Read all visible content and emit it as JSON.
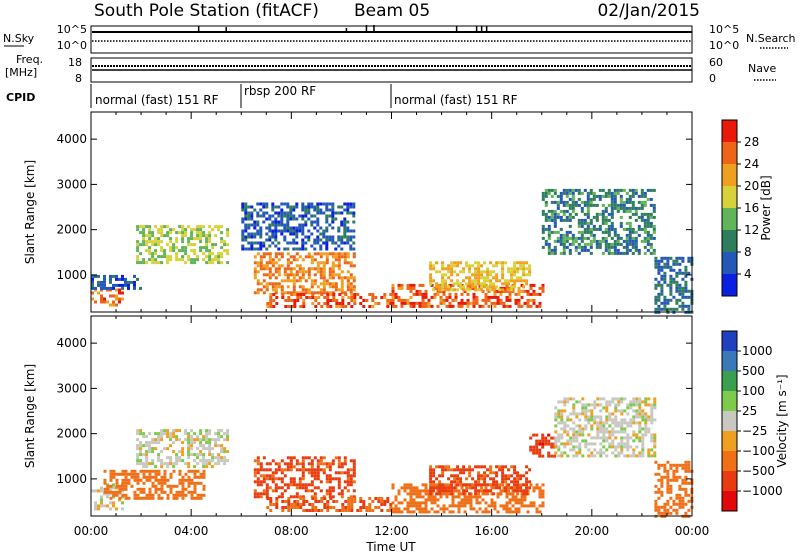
{
  "header": {
    "station": "South Pole Station (fitACF)",
    "beam": "Beam 05",
    "date": "02/Jan/2015"
  },
  "noise_panel": {
    "left_label": "N.Sky",
    "left_ticks": [
      "10^5",
      "10^0"
    ],
    "right_ticks": [
      "10^5",
      "10^0"
    ],
    "right_label": "N.Search"
  },
  "freq_panel": {
    "left_label_1": "Freq.",
    "left_label_2": "[MHz]",
    "left_ticks": [
      "18",
      "8"
    ],
    "right_ticks": [
      "60",
      "0"
    ],
    "right_label": "Nave"
  },
  "cpid": {
    "label": "CPID",
    "segments": [
      {
        "label": "normal (fast) 151 RF",
        "start_hour": 0,
        "end_hour": 6
      },
      {
        "label": "rbsp 200 RF",
        "start_hour": 6,
        "end_hour": 12
      },
      {
        "label": "normal (fast) 151 RF",
        "start_hour": 12,
        "end_hour": 24
      }
    ]
  },
  "x_axis": {
    "label": "Time UT",
    "ticks": [
      "00:00",
      "04:00",
      "08:00",
      "12:00",
      "16:00",
      "20:00",
      "00:00"
    ]
  },
  "power_colorbar": {
    "label": "Power [dB]",
    "ticks": [
      "4",
      "8",
      "12",
      "16",
      "20",
      "24",
      "28"
    ],
    "colors": [
      "#0a1fe0",
      "#2357b8",
      "#2e7d5c",
      "#62b45a",
      "#d8d23a",
      "#f0a020",
      "#ee6518",
      "#ea1a0a"
    ]
  },
  "velocity_colorbar": {
    "label": "Velocity [m s⁻¹]",
    "ticks": [
      "1000",
      "500",
      "100",
      "25",
      "−25",
      "−100",
      "−500",
      "−1000"
    ],
    "colors": [
      "#2040c0",
      "#3a78b8",
      "#3aa050",
      "#7ccb4a",
      "#c8c8c0",
      "#f0a020",
      "#f07018",
      "#e83c10",
      "#e00808"
    ]
  },
  "chart_data": [
    {
      "type": "heatmap",
      "title": "Power",
      "xlabel": "Time UT",
      "ylabel": "Slant Range [km]",
      "xlim": [
        0,
        24
      ],
      "ylim": [
        180,
        4600
      ],
      "yticks": [
        1000,
        2000,
        3000,
        4000
      ],
      "colorbar": "Power [dB]",
      "regions": [
        {
          "t0": 0.0,
          "t1": 1.2,
          "r0": 350,
          "r1": 700,
          "value": 26
        },
        {
          "t0": 0.0,
          "t1": 2.0,
          "r0": 700,
          "r1": 1000,
          "value": 6
        },
        {
          "t0": 1.8,
          "t1": 5.5,
          "r0": 1300,
          "r1": 2100,
          "value": 16
        },
        {
          "t0": 6.5,
          "t1": 10.5,
          "r0": 600,
          "r1": 1500,
          "value": 24
        },
        {
          "t0": 6.0,
          "t1": 10.5,
          "r0": 1600,
          "r1": 2600,
          "value": 6
        },
        {
          "t0": 7.0,
          "t1": 12.0,
          "r0": 300,
          "r1": 600,
          "value": 27
        },
        {
          "t0": 12.0,
          "t1": 18.0,
          "r0": 300,
          "r1": 800,
          "value": 27
        },
        {
          "t0": 13.5,
          "t1": 17.5,
          "r0": 700,
          "r1": 1300,
          "value": 20
        },
        {
          "t0": 18.0,
          "t1": 22.5,
          "r0": 1500,
          "r1": 2900,
          "value": 10
        },
        {
          "t0": 22.5,
          "t1": 24.0,
          "r0": 200,
          "r1": 1400,
          "value": 8
        }
      ]
    },
    {
      "type": "heatmap",
      "title": "Velocity",
      "xlabel": "Time UT",
      "ylabel": "Slant Range [km]",
      "xlim": [
        0,
        24
      ],
      "ylim": [
        180,
        4600
      ],
      "yticks": [
        1000,
        2000,
        3000,
        4000
      ],
      "colorbar": "Velocity [m s⁻¹]",
      "regions": [
        {
          "t0": 0.0,
          "t1": 1.2,
          "r0": 350,
          "r1": 900,
          "value": 0
        },
        {
          "t0": 1.8,
          "t1": 5.5,
          "r0": 1300,
          "r1": 2100,
          "value": 0
        },
        {
          "t0": 0.5,
          "t1": 4.5,
          "r0": 600,
          "r1": 1200,
          "value": -200
        },
        {
          "t0": 6.5,
          "t1": 10.5,
          "r0": 600,
          "r1": 1500,
          "value": -600
        },
        {
          "t0": 7.0,
          "t1": 12.0,
          "r0": 300,
          "r1": 600,
          "value": -500
        },
        {
          "t0": 12.0,
          "t1": 18.0,
          "r0": 300,
          "r1": 900,
          "value": -300
        },
        {
          "t0": 13.5,
          "t1": 17.5,
          "r0": 700,
          "r1": 1300,
          "value": -600
        },
        {
          "t0": 17.5,
          "t1": 18.5,
          "r0": 1500,
          "r1": 2000,
          "value": -800
        },
        {
          "t0": 18.5,
          "t1": 22.5,
          "r0": 1500,
          "r1": 2800,
          "value": 0
        },
        {
          "t0": 22.5,
          "t1": 24.0,
          "r0": 200,
          "r1": 1400,
          "value": -150
        }
      ]
    }
  ]
}
